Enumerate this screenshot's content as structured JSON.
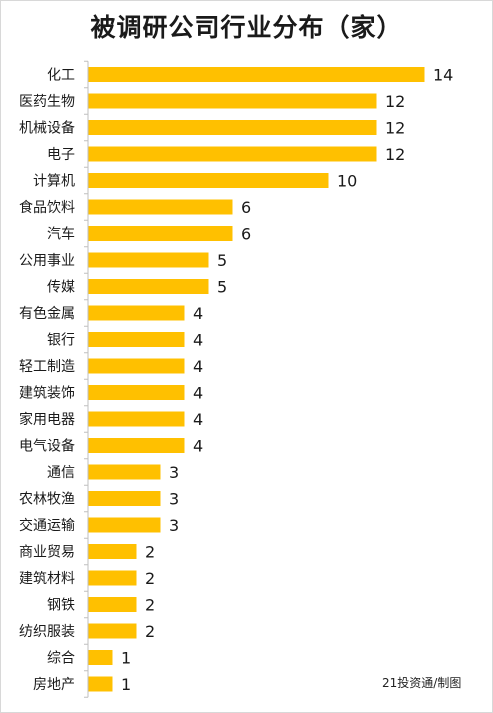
{
  "chart_data": {
    "type": "bar",
    "orientation": "horizontal",
    "title": "被调研公司行业分布（家）",
    "categories": [
      "化工",
      "医药生物",
      "机械设备",
      "电子",
      "计算机",
      "食品饮料",
      "汽车",
      "公用事业",
      "传媒",
      "有色金属",
      "银行",
      "轻工制造",
      "建筑装饰",
      "家用电器",
      "电气设备",
      "通信",
      "农林牧渔",
      "交通运输",
      "商业贸易",
      "建筑材料",
      "钢铁",
      "纺织服装",
      "综合",
      "房地产"
    ],
    "values": [
      14,
      12,
      12,
      12,
      10,
      6,
      6,
      5,
      5,
      4,
      4,
      4,
      4,
      4,
      4,
      3,
      3,
      3,
      2,
      2,
      2,
      2,
      1,
      1
    ],
    "value_labels": [
      "14",
      "12",
      "12",
      "12",
      "10",
      "6",
      "6",
      "5",
      "5",
      "4",
      "4",
      "4",
      "4",
      "4",
      "4",
      "3",
      "3",
      "3",
      "2",
      "2",
      "2",
      "2",
      "1",
      "1"
    ],
    "xlim": [
      0,
      14
    ],
    "grid": false,
    "legend": "none",
    "bar_color": "#FFC000"
  },
  "credit": "21投资通/制图"
}
